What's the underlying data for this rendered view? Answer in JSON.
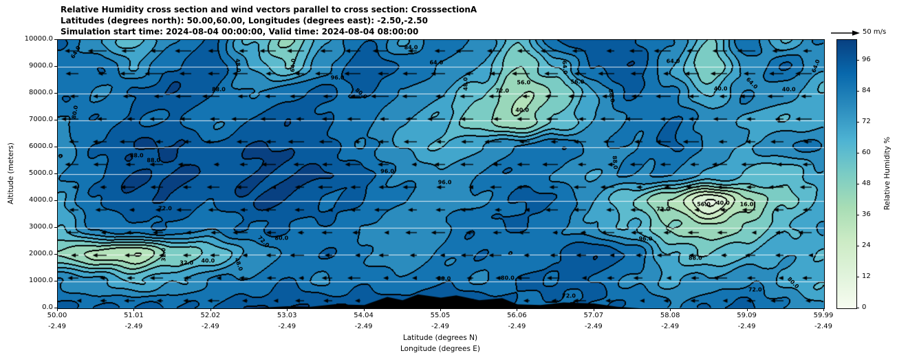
{
  "title": {
    "line1": "Relative Humidity cross section and wind vectors parallel to cross section: CrosssectionA",
    "line2": "Latitudes (degrees north): 50.00,60.00, Longitudes (degrees east): -2.50,-2.50",
    "line3": "Simulation start time: 2024-08-04 00:00:00, Valid time: 2024-08-04 08:00:00"
  },
  "axes": {
    "y_label": "Altitude (meters)",
    "x_label_line1": "Latitude (degrees N)",
    "x_label_line2": "Longitude (degrees E)",
    "y_ticks": [
      "10000.0",
      "9000.0",
      "8000.0",
      "7000.0",
      "6000.0",
      "5000.0",
      "4000.0",
      "3000.0",
      "2000.0",
      "1000.0",
      "0.0"
    ],
    "x_ticks_lat": [
      "50.00",
      "51.01",
      "52.02",
      "53.03",
      "54.04",
      "55.05",
      "56.06",
      "57.07",
      "58.08",
      "59.09",
      "59.99"
    ],
    "x_ticks_lon": [
      "-2.49",
      "-2.49",
      "-2.49",
      "-2.49",
      "-2.49",
      "-2.49",
      "-2.49",
      "-2.49",
      "-2.49",
      "-2.49",
      "-2.49"
    ]
  },
  "colorbar": {
    "label": "Relative Humidity %",
    "ticks": [
      "0",
      "12",
      "24",
      "36",
      "48",
      "60",
      "72",
      "84",
      "96"
    ],
    "tick_values": [
      0,
      12,
      24,
      36,
      48,
      60,
      72,
      84,
      96
    ],
    "vmin": 0,
    "vmax": 104
  },
  "quiver_key": {
    "label": "50 m/s"
  },
  "chart_data": {
    "type": "heatmap",
    "title": "Relative Humidity cross section and wind vectors parallel to cross section: CrosssectionA",
    "subtitle1": "Latitudes (degrees north): 50.00,60.00, Longitudes (degrees east): -2.50,-2.50",
    "subtitle2": "Simulation start time: 2024-08-04 00:00:00, Valid time: 2024-08-04 08:00:00",
    "xlabel": "Latitude (degrees N) / Longitude (degrees E)",
    "ylabel": "Altitude (meters)",
    "units": "%",
    "x_lat": [
      50.0,
      51.01,
      52.02,
      53.03,
      54.04,
      55.05,
      56.06,
      57.07,
      58.08,
      59.09,
      59.99
    ],
    "x_lon": -2.49,
    "y_m": [
      0,
      1000,
      2000,
      3000,
      4000,
      5000,
      6000,
      7000,
      8000,
      9000,
      10000
    ],
    "ylim": [
      0,
      10000
    ],
    "contour_levels": [
      8,
      16,
      24,
      32,
      40,
      48,
      56,
      64,
      72,
      80,
      88,
      96
    ],
    "colormap": [
      [
        0,
        "#f7fcf0"
      ],
      [
        0.125,
        "#e0f3db"
      ],
      [
        0.25,
        "#ccebc5"
      ],
      [
        0.375,
        "#a8ddb5"
      ],
      [
        0.5,
        "#7bccc4"
      ],
      [
        0.625,
        "#4eb3d3"
      ],
      [
        0.75,
        "#2b8cbe"
      ],
      [
        0.875,
        "#0868ac"
      ],
      [
        1,
        "#084081"
      ]
    ],
    "grid_order": "rows from 10000 m (top) to 0 m (bottom), 21 columns from 50.00N to 59.99N",
    "grid": [
      [
        88,
        72,
        60,
        80,
        88,
        64,
        48,
        70,
        88,
        72,
        88,
        80,
        56,
        88,
        96,
        88,
        80,
        56,
        88,
        64,
        80
      ],
      [
        80,
        88,
        72,
        88,
        96,
        72,
        56,
        80,
        96,
        88,
        80,
        72,
        48,
        64,
        88,
        96,
        72,
        48,
        72,
        88,
        72
      ],
      [
        88,
        80,
        88,
        96,
        88,
        80,
        88,
        88,
        88,
        80,
        72,
        56,
        40,
        48,
        72,
        88,
        80,
        64,
        80,
        72,
        64
      ],
      [
        80,
        88,
        88,
        88,
        80,
        88,
        96,
        88,
        80,
        72,
        64,
        48,
        40,
        56,
        72,
        80,
        88,
        80,
        72,
        64,
        72
      ],
      [
        72,
        88,
        96,
        96,
        88,
        96,
        96,
        88,
        80,
        72,
        64,
        72,
        80,
        88,
        80,
        80,
        88,
        80,
        72,
        80,
        80
      ],
      [
        80,
        88,
        96,
        96,
        96,
        96,
        96,
        96,
        88,
        80,
        72,
        80,
        88,
        80,
        72,
        80,
        80,
        72,
        64,
        56,
        72
      ],
      [
        72,
        88,
        96,
        96,
        88,
        96,
        96,
        88,
        88,
        80,
        72,
        80,
        88,
        88,
        72,
        56,
        40,
        14,
        40,
        56,
        64
      ],
      [
        64,
        80,
        88,
        88,
        80,
        88,
        88,
        88,
        80,
        72,
        80,
        88,
        88,
        80,
        72,
        64,
        48,
        40,
        48,
        64,
        72
      ],
      [
        48,
        36,
        32,
        48,
        56,
        72,
        80,
        88,
        80,
        72,
        80,
        88,
        80,
        88,
        96,
        88,
        64,
        56,
        64,
        72,
        64
      ],
      [
        80,
        72,
        64,
        72,
        80,
        80,
        88,
        80,
        88,
        80,
        88,
        80,
        88,
        88,
        88,
        80,
        72,
        72,
        80,
        72,
        64
      ],
      [
        88,
        88,
        88,
        88,
        88,
        96,
        96,
        96,
        96,
        96,
        96,
        96,
        88,
        88,
        88,
        88,
        80,
        88,
        88,
        80,
        72
      ]
    ],
    "contour_labels": [
      {
        "t": "64.0",
        "x": 0.023,
        "y": 0.045,
        "r": -60
      },
      {
        "t": "80.0",
        "x": 0.022,
        "y": 0.27,
        "r": -80
      },
      {
        "t": "88.0",
        "x": 0.103,
        "y": 0.432,
        "r": 0
      },
      {
        "t": "88.0",
        "x": 0.21,
        "y": 0.185,
        "r": 0
      },
      {
        "t": "48.0",
        "x": 0.235,
        "y": 0.095,
        "r": 85
      },
      {
        "t": "64.0",
        "x": 0.307,
        "y": 0.095,
        "r": -85
      },
      {
        "t": "96.0",
        "x": 0.365,
        "y": 0.14,
        "r": 0
      },
      {
        "t": "80.0",
        "x": 0.396,
        "y": 0.2,
        "r": 40
      },
      {
        "t": "84.0",
        "x": 0.461,
        "y": 0.028,
        "r": 0
      },
      {
        "t": "64.0",
        "x": 0.494,
        "y": 0.085,
        "r": 0
      },
      {
        "t": "48.0",
        "x": 0.532,
        "y": 0.165,
        "r": -90
      },
      {
        "t": "72.0",
        "x": 0.58,
        "y": 0.19,
        "r": 0
      },
      {
        "t": "56.0",
        "x": 0.608,
        "y": 0.16,
        "r": 0
      },
      {
        "t": "40.0",
        "x": 0.606,
        "y": 0.262,
        "r": 0
      },
      {
        "t": "64.0",
        "x": 0.662,
        "y": 0.103,
        "r": 85
      },
      {
        "t": "56.0",
        "x": 0.678,
        "y": 0.156,
        "r": 0
      },
      {
        "t": "88.0",
        "x": 0.723,
        "y": 0.208,
        "r": 80
      },
      {
        "t": "64.0",
        "x": 0.803,
        "y": 0.079,
        "r": 0
      },
      {
        "t": "40.0",
        "x": 0.865,
        "y": 0.182,
        "r": 0
      },
      {
        "t": "64.0",
        "x": 0.906,
        "y": 0.162,
        "r": 45
      },
      {
        "t": "40.0",
        "x": 0.954,
        "y": 0.185,
        "r": 0
      },
      {
        "t": "64.0",
        "x": 0.989,
        "y": 0.097,
        "r": -70
      },
      {
        "t": "88.0",
        "x": 0.125,
        "y": 0.449,
        "r": 0
      },
      {
        "t": "96.0",
        "x": 0.505,
        "y": 0.531,
        "r": 0
      },
      {
        "t": "96.0",
        "x": 0.43,
        "y": 0.49,
        "r": 0
      },
      {
        "t": "88.0",
        "x": 0.727,
        "y": 0.456,
        "r": 85
      },
      {
        "t": "72.0",
        "x": 0.79,
        "y": 0.631,
        "r": 0
      },
      {
        "t": "56.0",
        "x": 0.843,
        "y": 0.613,
        "r": 0
      },
      {
        "t": "40.0",
        "x": 0.868,
        "y": 0.608,
        "r": 0
      },
      {
        "t": "16.0",
        "x": 0.899,
        "y": 0.613,
        "r": 0
      },
      {
        "t": "96.0",
        "x": 0.767,
        "y": 0.741,
        "r": 0
      },
      {
        "t": "88.0",
        "x": 0.832,
        "y": 0.813,
        "r": 0
      },
      {
        "t": "32.0",
        "x": 0.168,
        "y": 0.831,
        "r": 0
      },
      {
        "t": "40.0",
        "x": 0.196,
        "y": 0.822,
        "r": 0
      },
      {
        "t": "48.0",
        "x": 0.236,
        "y": 0.836,
        "r": 70
      },
      {
        "t": "72.0",
        "x": 0.268,
        "y": 0.751,
        "r": 45
      },
      {
        "t": "80.0",
        "x": 0.292,
        "y": 0.738,
        "r": 0
      },
      {
        "t": "32.0",
        "x": 0.138,
        "y": 0.8,
        "r": -90
      },
      {
        "t": "88.0",
        "x": 0.504,
        "y": 0.89,
        "r": 0
      },
      {
        "t": "80.0",
        "x": 0.587,
        "y": 0.887,
        "r": 0
      },
      {
        "t": "72.0",
        "x": 0.667,
        "y": 0.955,
        "r": 0
      },
      {
        "t": "72.0",
        "x": 0.91,
        "y": 0.93,
        "r": 0
      },
      {
        "t": "80.0",
        "x": 0.96,
        "y": 0.905,
        "r": 45
      },
      {
        "t": "72.0",
        "x": 0.14,
        "y": 0.628,
        "r": 0
      }
    ],
    "terrain_profile": [
      [
        0,
        0
      ],
      [
        0.25,
        0
      ],
      [
        0.3,
        80
      ],
      [
        0.33,
        60
      ],
      [
        0.36,
        150
      ],
      [
        0.4,
        120
      ],
      [
        0.43,
        420
      ],
      [
        0.45,
        300
      ],
      [
        0.47,
        520
      ],
      [
        0.5,
        400
      ],
      [
        0.52,
        480
      ],
      [
        0.55,
        300
      ],
      [
        0.58,
        380
      ],
      [
        0.6,
        150
      ],
      [
        0.63,
        120
      ],
      [
        0.66,
        220
      ],
      [
        0.7,
        180
      ],
      [
        0.73,
        60
      ],
      [
        0.76,
        0
      ],
      [
        1,
        0
      ]
    ],
    "wind": {
      "direction": "arrows point toward lower latitude (left)",
      "reference_ms": 50,
      "rows": 12,
      "cols": 28
    }
  }
}
